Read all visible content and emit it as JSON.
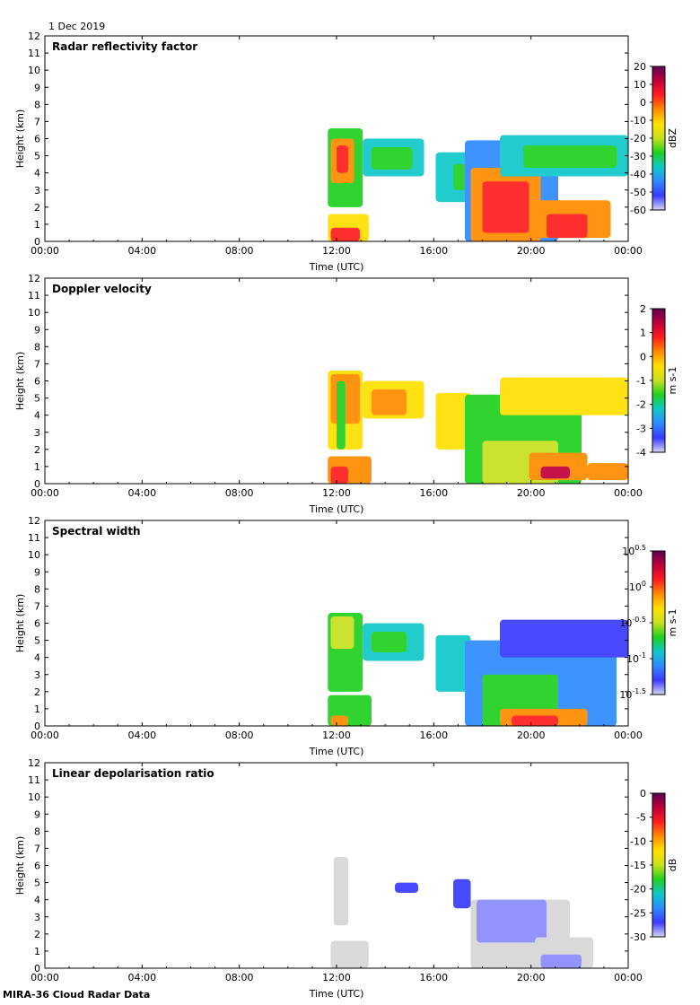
{
  "date": "1 Dec 2019",
  "footer": "MIRA-36 Cloud Radar Data",
  "chart_data": [
    {
      "type": "heatmap",
      "title": "Radar reflectivity factor",
      "xlabel": "Time (UTC)",
      "ylabel": "Height (km)",
      "xticks": [
        "00:00",
        "04:00",
        "08:00",
        "12:00",
        "16:00",
        "20:00",
        "00:00"
      ],
      "ylim": [
        0,
        12
      ],
      "colorbar": {
        "label": "dBZ",
        "range": [
          -60,
          20
        ],
        "ticks": [
          "20",
          "10",
          "0",
          "-10",
          "-20",
          "-30",
          "-40",
          "-50",
          "-60"
        ],
        "colormap": [
          "#d6d6f2",
          "#3a3aff",
          "#2e8bff",
          "#10c8c8",
          "#20d020",
          "#c8e020",
          "#ffe000",
          "#ff8c00",
          "#ff1e1e",
          "#c0003a",
          "#5a0050"
        ]
      }
    },
    {
      "type": "heatmap",
      "title": "Doppler velocity",
      "xlabel": "Time (UTC)",
      "ylabel": "Height (km)",
      "xticks": [
        "00:00",
        "04:00",
        "08:00",
        "12:00",
        "16:00",
        "20:00",
        "00:00"
      ],
      "ylim": [
        0,
        12
      ],
      "colorbar": {
        "label": "m s-1",
        "range": [
          -4,
          2
        ],
        "ticks": [
          "2",
          "1",
          "0",
          "-1",
          "-2",
          "-3",
          "-4"
        ],
        "colormap": [
          "#d6d6f2",
          "#3a3aff",
          "#2e8bff",
          "#10c8c8",
          "#20d020",
          "#c8e020",
          "#ffe000",
          "#ff8c00",
          "#ff1e1e",
          "#c0003a",
          "#5a0050"
        ]
      }
    },
    {
      "type": "heatmap",
      "title": "Spectral width",
      "xlabel": "Time (UTC)",
      "ylabel": "Height (km)",
      "xticks": [
        "00:00",
        "04:00",
        "08:00",
        "12:00",
        "16:00",
        "20:00",
        "00:00"
      ],
      "ylim": [
        0,
        12
      ],
      "colorbar": {
        "label": "m s-1",
        "range": [
          -1.5,
          0.5
        ],
        "ticks": [
          "10^0.5",
          "10^0",
          "10^-0.5",
          "10^-1",
          "10^-1.5"
        ],
        "colormap": [
          "#d6d6f2",
          "#3a3aff",
          "#2e8bff",
          "#10c8c8",
          "#20d020",
          "#c8e020",
          "#ffe000",
          "#ff8c00",
          "#ff1e1e",
          "#c0003a",
          "#5a0050"
        ]
      }
    },
    {
      "type": "heatmap",
      "title": "Linear depolarisation ratio",
      "xlabel": "Time (UTC)",
      "ylabel": "Height (km)",
      "xticks": [
        "00:00",
        "04:00",
        "08:00",
        "12:00",
        "16:00",
        "20:00",
        "00:00"
      ],
      "ylim": [
        0,
        12
      ],
      "colorbar": {
        "label": "dB",
        "range": [
          -30,
          0
        ],
        "ticks": [
          "0",
          "-5",
          "-10",
          "-15",
          "-20",
          "-25",
          "-30"
        ],
        "colormap": [
          "#d6d6f2",
          "#3a3aff",
          "#2e8bff",
          "#10c8c8",
          "#20d020",
          "#c8e020",
          "#ffe000",
          "#ff8c00",
          "#ff1e1e",
          "#c0003a",
          "#5a0050"
        ]
      }
    }
  ]
}
